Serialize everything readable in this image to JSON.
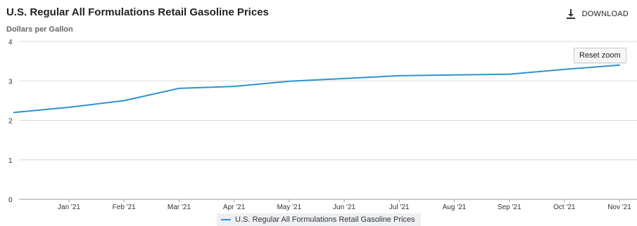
{
  "header": {
    "title": "U.S. Regular All Formulations Retail Gasoline Prices",
    "subtitle": "Dollars per Gallon",
    "download_label": "DOWNLOAD",
    "download_icon": "download-icon"
  },
  "controls": {
    "reset_zoom_label": "Reset zoom"
  },
  "colors": {
    "series": "#2e93d0",
    "grid": "#d8d8d8",
    "axis_text": "#333333"
  },
  "chart_data": {
    "type": "line",
    "title": "U.S. Regular All Formulations Retail Gasoline Prices",
    "ylabel": "Dollars per Gallon",
    "xlabel": "",
    "ylim": [
      0,
      4
    ],
    "y_ticks": [
      "0",
      "1",
      "2",
      "3",
      "4"
    ],
    "grid": true,
    "legend_position": "bottom-center",
    "x_tick_labels": [
      "Jan '21",
      "Feb '21",
      "Mar '21",
      "Apr '21",
      "May '21",
      "Jun '21",
      "Jul '21",
      "Aug '21",
      "Sep '21",
      "Oct '21",
      "Nov '21"
    ],
    "series": [
      {
        "name": "U.S. Regular All Formulations Retail Gasoline Prices",
        "points": [
          {
            "x": "2020-12",
            "y": 2.2
          },
          {
            "x": "2021-01",
            "y": 2.33
          },
          {
            "x": "2021-02",
            "y": 2.5
          },
          {
            "x": "2021-03",
            "y": 2.81
          },
          {
            "x": "2021-04",
            "y": 2.86
          },
          {
            "x": "2021-05",
            "y": 2.99
          },
          {
            "x": "2021-06",
            "y": 3.06
          },
          {
            "x": "2021-07",
            "y": 3.13
          },
          {
            "x": "2021-08",
            "y": 3.15
          },
          {
            "x": "2021-09",
            "y": 3.17
          },
          {
            "x": "2021-10",
            "y": 3.29
          },
          {
            "x": "2021-11",
            "y": 3.4
          }
        ]
      }
    ]
  }
}
